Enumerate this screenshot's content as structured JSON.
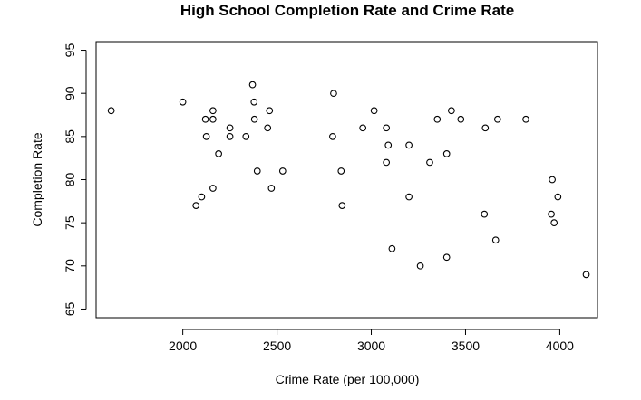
{
  "chart_data": {
    "type": "scatter",
    "title": "High School Completion Rate and Crime Rate",
    "xlabel": "Crime Rate (per 100,000)",
    "ylabel": "Completion Rate",
    "xlim": [
      1540,
      4200
    ],
    "ylim": [
      64,
      96
    ],
    "xticks": [
      2000,
      2500,
      3000,
      3500,
      4000
    ],
    "yticks": [
      65,
      70,
      75,
      80,
      85,
      90,
      95
    ],
    "grid": false,
    "legend": "none",
    "points": [
      [
        1620,
        88
      ],
      [
        2000,
        89
      ],
      [
        2070,
        77
      ],
      [
        2100,
        78
      ],
      [
        2120,
        87
      ],
      [
        2125,
        85
      ],
      [
        2160,
        88
      ],
      [
        2160,
        87
      ],
      [
        2160,
        79
      ],
      [
        2190,
        83
      ],
      [
        2250,
        86
      ],
      [
        2250,
        85
      ],
      [
        2335,
        85
      ],
      [
        2370,
        91
      ],
      [
        2378,
        89
      ],
      [
        2380,
        87
      ],
      [
        2395,
        81
      ],
      [
        2450,
        86
      ],
      [
        2460,
        88
      ],
      [
        2470,
        79
      ],
      [
        2530,
        81
      ],
      [
        2800,
        90
      ],
      [
        2795,
        85
      ],
      [
        2840,
        81
      ],
      [
        2845,
        77
      ],
      [
        2955,
        86
      ],
      [
        3015,
        88
      ],
      [
        3080,
        86
      ],
      [
        3080,
        82
      ],
      [
        3090,
        84
      ],
      [
        3110,
        72
      ],
      [
        3200,
        84
      ],
      [
        3200,
        78
      ],
      [
        3260,
        70
      ],
      [
        3310,
        82
      ],
      [
        3350,
        87
      ],
      [
        3400,
        83
      ],
      [
        3400,
        71
      ],
      [
        3425,
        88
      ],
      [
        3475,
        87
      ],
      [
        3600,
        76
      ],
      [
        3605,
        86
      ],
      [
        3660,
        73
      ],
      [
        3670,
        87
      ],
      [
        3820,
        87
      ],
      [
        3960,
        80
      ],
      [
        3955,
        76
      ],
      [
        3970,
        75
      ],
      [
        3990,
        78
      ],
      [
        4140,
        69
      ]
    ]
  }
}
